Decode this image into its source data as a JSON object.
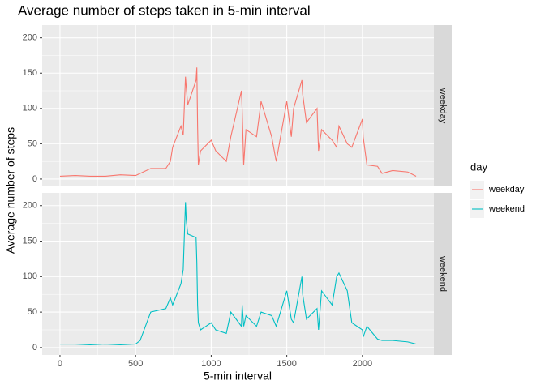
{
  "chart_data": {
    "type": "line",
    "title": "Average number of steps taken in 5-min interval",
    "x_label": "5-min interval",
    "y_label": "Average number of steps",
    "legend_title": "day",
    "facets": true,
    "grid": true,
    "legend_position": "right",
    "x": [
      0,
      100,
      200,
      300,
      400,
      500,
      530,
      600,
      700,
      730,
      745,
      800,
      815,
      830,
      835,
      845,
      900,
      905,
      910,
      915,
      930,
      1000,
      1030,
      1100,
      1130,
      1200,
      1205,
      1215,
      1230,
      1300,
      1330,
      1400,
      1430,
      1500,
      1530,
      1545,
      1600,
      1605,
      1630,
      1700,
      1710,
      1730,
      1800,
      1830,
      1845,
      1900,
      1930,
      2000,
      2005,
      2030,
      2100,
      2130,
      2200,
      2300,
      2355
    ],
    "series": [
      {
        "name": "weekday",
        "color": "#f8766d",
        "values": [
          4,
          5,
          4,
          4,
          6,
          5,
          8,
          15,
          15,
          25,
          45,
          75,
          62,
          145,
          130,
          105,
          140,
          158,
          75,
          20,
          40,
          55,
          40,
          25,
          60,
          125,
          98,
          20,
          70,
          60,
          110,
          60,
          25,
          110,
          60,
          100,
          140,
          120,
          80,
          100,
          40,
          70,
          55,
          45,
          75,
          50,
          45,
          85,
          60,
          20,
          18,
          8,
          12,
          10,
          4
        ]
      },
      {
        "name": "weekend",
        "color": "#00bfc4",
        "values": [
          5,
          5,
          4,
          5,
          4,
          5,
          10,
          50,
          55,
          70,
          60,
          90,
          110,
          205,
          180,
          160,
          155,
          120,
          60,
          35,
          25,
          35,
          25,
          20,
          50,
          30,
          60,
          30,
          45,
          30,
          50,
          45,
          30,
          80,
          40,
          35,
          100,
          75,
          40,
          55,
          25,
          80,
          60,
          100,
          105,
          80,
          35,
          25,
          15,
          30,
          12,
          10,
          10,
          8,
          5
        ]
      }
    ],
    "xlim": [
      -117.75,
      2472.75
    ],
    "xticks": [
      0,
      500,
      1000,
      1500,
      2000
    ],
    "ylim": [
      -10.4,
      218
    ],
    "yticks": [
      0,
      50,
      100,
      150,
      200
    ]
  }
}
